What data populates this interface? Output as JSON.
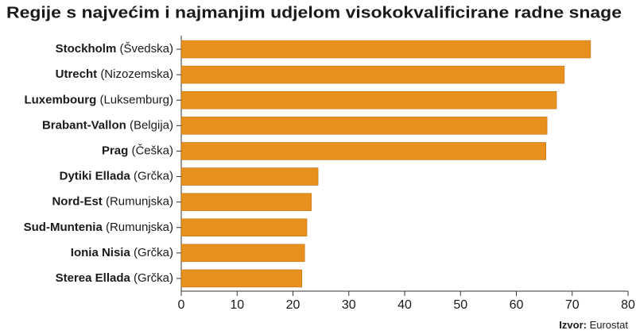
{
  "chart_data": {
    "type": "bar",
    "orientation": "horizontal",
    "title": "Regije s najvećim i najmanjim udjelom visokokvalificirane radne snage",
    "categories": [
      "Stockholm",
      "Utrecht",
      "Luxembourg",
      "Brabant-Vallon",
      "Prag",
      "Dytiki Ellada",
      "Nord-Est",
      "Sud-Muntenia",
      "Ionia Nisia",
      "Sterea Ellada"
    ],
    "countries": [
      "(Švedska)",
      "(Nizozemska)",
      "(Luksemburg)",
      "(Belgija)",
      "(Češka)",
      "(Grčka)",
      "(Rumunjska)",
      "(Rumunjska)",
      "(Grčka)",
      "(Grčka)"
    ],
    "values": [
      73.3,
      68.6,
      67.2,
      65.5,
      65.3,
      24.5,
      23.3,
      22.5,
      22.1,
      21.6
    ],
    "color": "#e8901e",
    "xlim": [
      0,
      80
    ],
    "xticks": [
      0,
      10,
      20,
      30,
      40,
      50,
      60,
      70,
      80
    ],
    "grid": false,
    "source_label": "Izvor:",
    "source": "Eurostat"
  }
}
